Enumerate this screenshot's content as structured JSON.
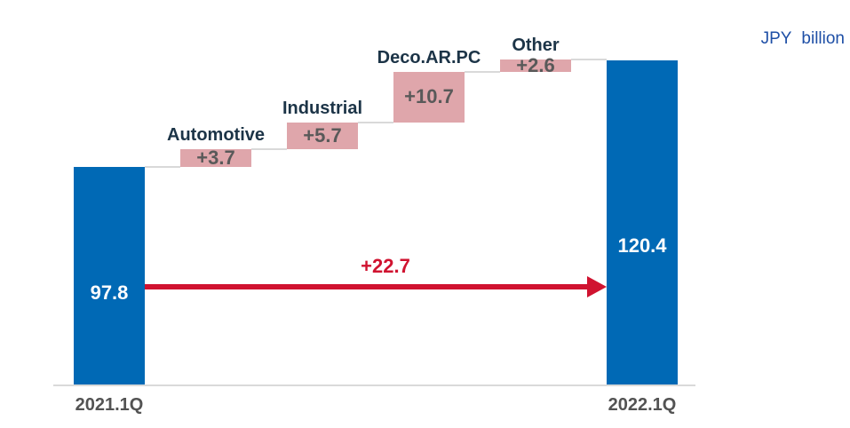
{
  "unit_label": "JPY billion",
  "colors": {
    "total_bar": "#0069b5",
    "delta_bar": "#dfa6ab",
    "category_label": "#1c3447",
    "delta_value_label": "#595959",
    "total_value_label": "#ffffff",
    "axis_label": "#535353",
    "arrow": "#d01330",
    "connector": "#d9d9d9",
    "unit_label_color": "#1e4fa6"
  },
  "chart_data": {
    "type": "bar",
    "subtype": "waterfall",
    "title": "",
    "unit": "JPY billion",
    "categories": [
      "2021.1Q",
      "Automotive",
      "Industrial",
      "Deco.AR.PC",
      "Other",
      "2022.1Q"
    ],
    "steps": [
      {
        "category": "2021.1Q",
        "role": "total",
        "value": 97.8,
        "label": "97.8"
      },
      {
        "category": "Automotive",
        "role": "increase",
        "value": 3.7,
        "label": "+3.7"
      },
      {
        "category": "Industrial",
        "role": "increase",
        "value": 5.7,
        "label": "+5.7"
      },
      {
        "category": "Deco.AR.PC",
        "role": "increase",
        "value": 10.7,
        "label": "+10.7"
      },
      {
        "category": "Other",
        "role": "increase",
        "value": 2.6,
        "label": "+2.6"
      },
      {
        "category": "2022.1Q",
        "role": "total",
        "value": 120.4,
        "label": "120.4"
      }
    ],
    "total_change": {
      "value": 22.7,
      "label": "+22.7"
    },
    "ylim": [
      51.5,
      125
    ],
    "x_axis_visible_labels": [
      "2021.1Q",
      "2022.1Q"
    ],
    "grid": false,
    "legend": false
  }
}
